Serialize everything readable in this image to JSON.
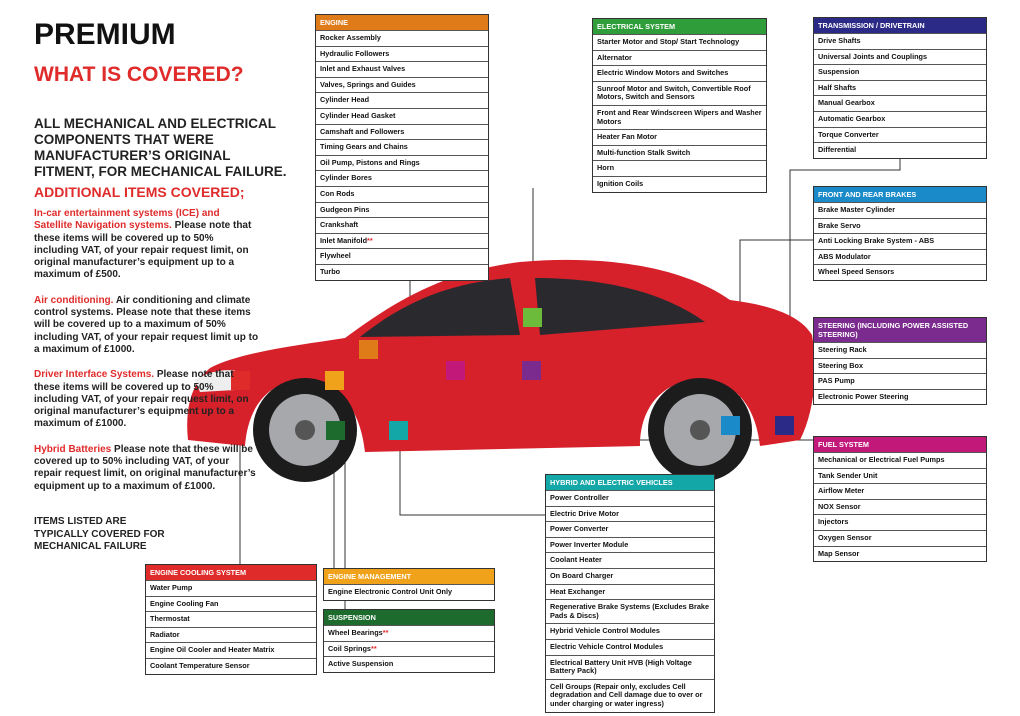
{
  "header": {
    "title": "PREMIUM",
    "subtitle": "WHAT IS COVERED?"
  },
  "intro": "ALL MECHANICAL AND ELECTRICAL COMPONENTS THAT WERE MANUFACTURER’S ORIGINAL FITMENT, FOR MECHANICAL FAILURE.",
  "additional_heading": "ADDITIONAL ITEMS COVERED;",
  "additional": [
    {
      "highlight": "In-car entertainment systems (ICE) and Satellite Navigation systems.",
      "text": "Please note that these items will be covered up to 50% including VAT, of your repair request limit, on original manufacturer’s equipment up to a maximum of £500."
    },
    {
      "highlight": "Air conditioning.",
      "text": "Air conditioning and climate control systems. Please note that these items will be covered up to a maximum of 50% including VAT, of your repair request limit up to a maximum of £1000."
    },
    {
      "highlight": "Driver Interface Systems.",
      "text": "Please note that these items will be covered up to 50% including VAT, of your repair request limit, on original manufacturer’s equipment up to a maximum of £1000."
    },
    {
      "highlight": "Hybrid Batteries",
      "text": "Please note that these will be covered up to 50% including VAT, of your repair request limit, on original manufacturer’s equipment up to a maximum of £1000."
    }
  ],
  "footnote": "ITEMS LISTED ARE TYPICALLY COVERED FOR MECHANICAL FAILURE",
  "panels": [
    {
      "title": "ENGINE",
      "color": "#e07b1a",
      "items": [
        "Rocker Assembly",
        "Hydraulic Followers",
        "Inlet and Exhaust Valves",
        "Valves, Springs and Guides",
        "Cylinder Head",
        "Cylinder Head Gasket",
        "Camshaft and Followers",
        "Timing Gears and Chains",
        "Oil Pump, Pistons and Rings",
        "Cylinder Bores",
        "Con Rods",
        "Gudgeon Pins",
        "Crankshaft",
        {
          "text": "Inlet Manifold",
          "mark": "**"
        },
        "Flywheel",
        "Turbo"
      ]
    },
    {
      "title": "ELECTRICAL SYSTEM",
      "color": "#2f9e3a",
      "items": [
        "Starter Motor and Stop/ Start Technology",
        "Alternator",
        "Electric Window Motors and Switches",
        "Sunroof Motor and Switch, Convertible Roof Motors, Switch and Sensors",
        "Front and Rear Windscreen Wipers and Washer Motors",
        "Heater Fan Motor",
        "Multi-function Stalk Switch",
        "Horn",
        "Ignition Coils"
      ]
    },
    {
      "title": "TRANSMISSION / DRIVETRAIN",
      "color": "#2b2a86",
      "items": [
        "Drive Shafts",
        "Universal Joints and Couplings",
        "Suspension",
        "Half Shafts",
        "Manual Gearbox",
        "Automatic Gearbox",
        "Torque Converter",
        "Differential"
      ]
    },
    {
      "title": "FRONT AND REAR BRAKES",
      "color": "#1a8bc8",
      "items": [
        "Brake Master Cylinder",
        "Brake Servo",
        "Anti Locking Brake System - ABS",
        "ABS Modulator",
        "Wheel Speed Sensors"
      ]
    },
    {
      "title": "STEERING (INCLUDING POWER ASSISTED STEERING)",
      "color": "#7b2a8e",
      "items": [
        "Steering Rack",
        "Steering Box",
        "PAS Pump",
        "Electronic Power Steering"
      ]
    },
    {
      "title": "FUEL SYSTEM",
      "color": "#c2187a",
      "items": [
        "Mechanical or Electrical Fuel Pumps",
        "Tank Sender Unit",
        "Airflow Meter",
        "NOX Sensor",
        "Injectors",
        "Oxygen Sensor",
        "Map Sensor"
      ]
    },
    {
      "title": "HYBRID AND ELECTRIC VEHICLES",
      "color": "#14a7a8",
      "items": [
        "Power Controller",
        "Electric Drive Motor",
        "Power Converter",
        "Power Inverter Module",
        "Coolant Heater",
        "On Board Charger",
        "Heat Exchanger",
        "Regenerative Brake Systems (Excludes Brake Pads & Discs)",
        "Hybrid Vehicle Control Modules",
        "Electric Vehicle Control Modules",
        "Electrical Battery Unit HVB (High Voltage Battery Pack)",
        "Cell Groups (Repair only, excludes Cell degradation and Cell damage due to over or under charging or water ingress)"
      ]
    },
    {
      "title": "ENGINE COOLING SYSTEM",
      "color": "#e02b2b",
      "items": [
        "Water Pump",
        "Engine Cooling Fan",
        "Thermostat",
        "Radiator",
        "Engine Oil Cooler and Heater Matrix",
        "Coolant Temperature Sensor"
      ]
    },
    {
      "title": "ENGINE MANAGEMENT",
      "color": "#f0a21a",
      "items": [
        "Engine Electronic Control Unit Only"
      ]
    },
    {
      "title": "SUSPENSION",
      "color": "#1e6b2e",
      "items": [
        {
          "text": "Wheel Bearings",
          "mark": "**"
        },
        {
          "text": "Coil Springs",
          "mark": "**"
        },
        "Active Suspension"
      ]
    }
  ]
}
